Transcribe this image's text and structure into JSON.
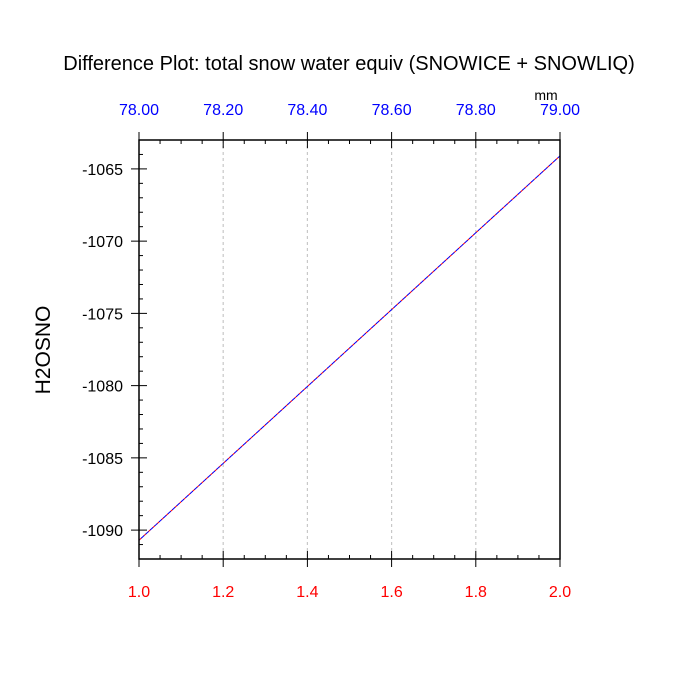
{
  "chart_data": {
    "type": "line",
    "title": "Difference Plot: total snow water equiv (SNOWICE + SNOWLIQ)",
    "ylabel": "H2OSNO",
    "units": "mm",
    "xlim": [
      1.0,
      2.0
    ],
    "ylim": [
      -1092.0,
      -1063.0
    ],
    "x_ticks": [
      "1.0",
      "1.2",
      "1.4",
      "1.6",
      "1.8",
      "2.0"
    ],
    "x_tick_values": [
      1.0,
      1.2,
      1.4,
      1.6,
      1.8,
      2.0
    ],
    "top_xlim": [
      78.0,
      79.0
    ],
    "top_ticks": [
      "78.00",
      "78.20",
      "78.40",
      "78.60",
      "78.80",
      "79.00"
    ],
    "top_tick_values": [
      78.0,
      78.2,
      78.4,
      78.6,
      78.8,
      79.0
    ],
    "y_ticks": [
      "-1065",
      "-1070",
      "-1075",
      "-1080",
      "-1085",
      "-1090"
    ],
    "y_tick_values": [
      -1065,
      -1070,
      -1075,
      -1080,
      -1085,
      -1090
    ],
    "vertical_grid": true,
    "series": [
      {
        "color": "#ff0000",
        "dash": "dashed",
        "x": [
          1.0,
          2.0
        ],
        "y": [
          -1090.7,
          -1064.1
        ]
      },
      {
        "color": "#0000ff",
        "dash": "dashed",
        "x": [
          1.0,
          2.0
        ],
        "y": [
          -1090.7,
          -1064.1
        ]
      }
    ],
    "colors": {
      "bottom_tick_labels": "#ff0000",
      "top_tick_labels": "#0000ff",
      "grid": "#c8c8c8",
      "axis": "#000000"
    }
  }
}
